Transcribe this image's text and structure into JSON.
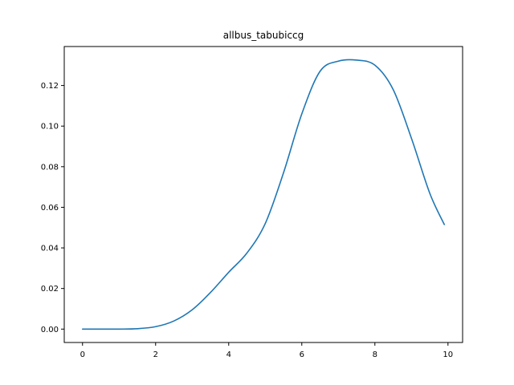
{
  "chart_data": {
    "type": "line",
    "title": "allbus_tabubiccg",
    "xlabel": "",
    "ylabel": "",
    "xlim": [
      -0.5,
      10.4
    ],
    "ylim": [
      -0.0066,
      0.1392
    ],
    "x_ticks": [
      0,
      2,
      4,
      6,
      8,
      10
    ],
    "x_tick_labels": [
      "0",
      "2",
      "4",
      "6",
      "8",
      "10"
    ],
    "y_ticks": [
      0.0,
      0.02,
      0.04,
      0.06,
      0.08,
      0.1,
      0.12
    ],
    "y_tick_labels": [
      "0.00",
      "0.02",
      "0.04",
      "0.06",
      "0.08",
      "0.10",
      "0.12"
    ],
    "grid": false,
    "series": [
      {
        "name": "allbus_tabubiccg",
        "color": "#1f77b4",
        "x": [
          0,
          0.5,
          1.0,
          1.5,
          2.0,
          2.5,
          3.0,
          3.5,
          4.0,
          4.5,
          5.0,
          5.5,
          6.0,
          6.5,
          7.0,
          7.5,
          8.0,
          8.5,
          9.0,
          9.5,
          9.9
        ],
        "y": [
          0.0,
          0.0,
          0.0,
          0.0002,
          0.0012,
          0.004,
          0.0095,
          0.018,
          0.028,
          0.0375,
          0.052,
          0.077,
          0.106,
          0.127,
          0.132,
          0.1325,
          0.13,
          0.118,
          0.094,
          0.067,
          0.0515
        ]
      }
    ]
  }
}
